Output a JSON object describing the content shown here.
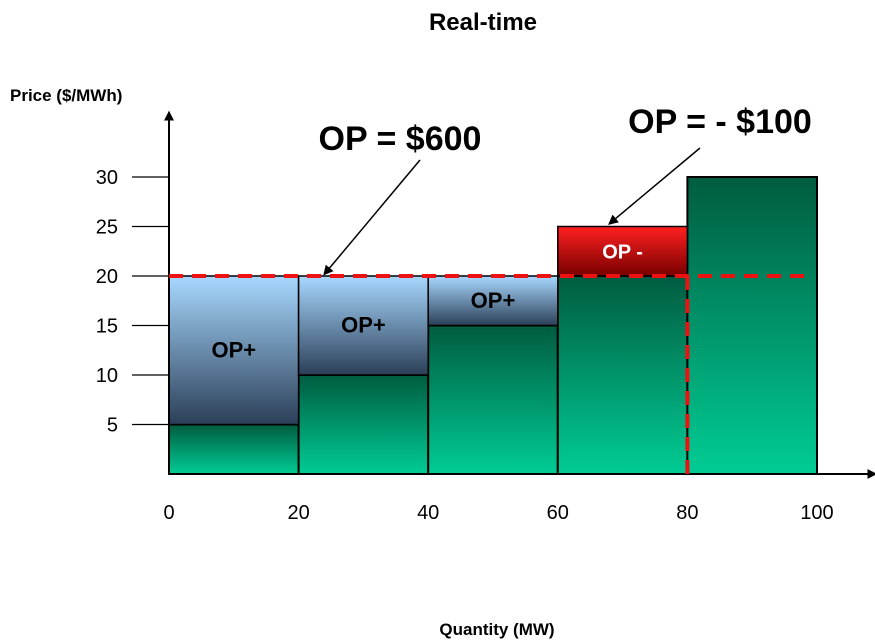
{
  "chart_data": {
    "type": "bar",
    "title": "Real-time",
    "xlabel": "Quantity (MW)",
    "ylabel": "Price ($/MWh)",
    "xlim": [
      0,
      100
    ],
    "ylim": [
      0,
      30
    ],
    "x_ticks": [
      "0",
      "20",
      "40",
      "60",
      "80",
      "100"
    ],
    "y_ticks": [
      "5",
      "10",
      "15",
      "20",
      "25",
      "30"
    ],
    "x_tick_values": [
      0,
      20,
      40,
      60,
      80,
      100
    ],
    "y_tick_values": [
      5,
      10,
      15,
      20,
      25,
      30
    ],
    "offer_blocks": [
      {
        "x0": 0,
        "x1": 20,
        "price": 5
      },
      {
        "x0": 20,
        "x1": 40,
        "price": 10
      },
      {
        "x0": 40,
        "x1": 60,
        "price": 15
      },
      {
        "x0": 60,
        "x1": 80,
        "price": 20
      },
      {
        "x0": 80,
        "x1": 100,
        "price": 30
      }
    ],
    "op_regions": [
      {
        "label": "OP+",
        "x0": 0,
        "x1": 20,
        "y0": 5,
        "y1": 20
      },
      {
        "label": "OP+",
        "x0": 20,
        "x1": 40,
        "y0": 10,
        "y1": 20
      },
      {
        "label": "OP+",
        "x0": 40,
        "x1": 60,
        "y0": 15,
        "y1": 20
      },
      {
        "label": "OP -",
        "x0": 60,
        "x1": 80,
        "y0": 20,
        "y1": 25
      }
    ],
    "clearing_price": 20,
    "clearing_quantity": 80,
    "annotations": [
      {
        "text": "OP = $600"
      },
      {
        "text": "OP = - $100"
      }
    ],
    "colors": {
      "bar_top": "#005c40",
      "bar_bottom": "#00cc94",
      "op_plus_top": "#a8d8ff",
      "op_plus_bottom": "#2b3f57",
      "op_minus_top": "#ff2020",
      "op_minus_bottom": "#780000",
      "dash": "#ee1111"
    }
  }
}
